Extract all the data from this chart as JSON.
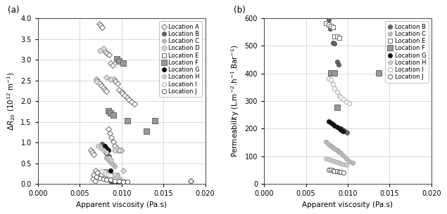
{
  "panel_a": {
    "xlabel": "Apparent viscosity (Pa.s)",
    "ylabel": "ΔR₂₀ (10¹² m⁻¹)",
    "xlim": [
      0.0,
      0.02
    ],
    "ylim": [
      0.0,
      4.0
    ],
    "xticks": [
      0.0,
      0.005,
      0.01,
      0.015,
      0.02
    ],
    "yticks": [
      0.0,
      0.5,
      1.0,
      1.5,
      2.0,
      2.5,
      3.0,
      3.5,
      4.0
    ],
    "locations": {
      "A": {
        "marker": "D",
        "color": "white",
        "edgecolor": "#666666",
        "ms": 4.5,
        "lw": 0.7,
        "x": [
          0.0073,
          0.0075,
          0.0077,
          0.0079,
          0.0081,
          0.0083,
          0.0085,
          0.0087,
          0.0089,
          0.0091,
          0.0093,
          0.0095,
          0.0097,
          0.01,
          0.007,
          0.0072,
          0.0074,
          0.0076,
          0.0078,
          0.008,
          0.0082,
          0.0084,
          0.0086,
          0.0088,
          0.009,
          0.0092,
          0.0094,
          0.0096,
          0.0099,
          0.0063,
          0.0065,
          0.0067,
          0.0069,
          0.0071,
          0.0076,
          0.0085,
          0.0066,
          0.0068,
          0.0183,
          0.0095,
          0.0101,
          0.0104,
          0.0107,
          0.0109,
          0.0112,
          0.0115
        ],
        "y": [
          3.87,
          3.83,
          3.78,
          3.22,
          3.18,
          3.15,
          3.12,
          2.92,
          2.87,
          2.52,
          2.47,
          2.42,
          2.27,
          2.22,
          2.52,
          2.47,
          2.43,
          2.38,
          2.33,
          2.28,
          2.23,
          1.32,
          1.22,
          1.12,
          1.02,
          0.92,
          0.87,
          0.82,
          0.82,
          0.82,
          0.77,
          0.72,
          0.32,
          0.27,
          0.22,
          0.17,
          0.12,
          0.07,
          0.07,
          0.07,
          2.18,
          2.13,
          2.08,
          2.03,
          1.98,
          1.93
        ]
      },
      "B": {
        "marker": "o",
        "color": "#666666",
        "edgecolor": "#444444",
        "ms": 4.5,
        "lw": 0.5,
        "x": [
          0.0077,
          0.0079,
          0.0081,
          0.0083,
          0.0085,
          0.0087,
          0.0089,
          0.0091,
          0.0093
        ],
        "y": [
          0.97,
          0.92,
          0.77,
          0.72,
          0.67,
          0.07,
          0.07,
          0.07,
          0.07
        ]
      },
      "C": {
        "marker": "o",
        "color": "#bbbbbb",
        "edgecolor": "#999999",
        "ms": 4.5,
        "lw": 0.5,
        "x": [
          0.0074,
          0.0077,
          0.008,
          0.0082,
          0.0084,
          0.0087,
          0.0089,
          0.0092,
          0.0095,
          0.0098,
          0.0102
        ],
        "y": [
          0.92,
          0.87,
          0.82,
          0.62,
          0.57,
          0.52,
          0.47,
          0.42,
          0.22,
          0.12,
          0.07
        ]
      },
      "D": {
        "marker": "D",
        "color": "#dddddd",
        "edgecolor": "#999999",
        "ms": 4.5,
        "lw": 0.7,
        "x": [
          0.007,
          0.0074,
          0.0078,
          0.0082,
          0.0087,
          0.0092,
          0.0097,
          0.0102,
          0.0084,
          0.008
        ],
        "y": [
          2.47,
          3.22,
          3.27,
          2.57,
          2.52,
          0.82,
          0.82,
          0.32,
          0.27,
          0.22
        ]
      },
      "E": {
        "marker": "s",
        "color": "white",
        "edgecolor": "#666666",
        "ms": 4.5,
        "lw": 0.7,
        "x": [
          0.008,
          0.0082,
          0.0084,
          0.0087,
          0.009,
          0.0092,
          0.0095
        ],
        "y": [
          0.3,
          0.27,
          0.24,
          0.22,
          0.2,
          0.17,
          0.12
        ]
      },
      "F": {
        "marker": "s",
        "color": "#999999",
        "edgecolor": "#666666",
        "ms": 5.5,
        "lw": 0.7,
        "x": [
          0.0084,
          0.0087,
          0.009,
          0.0094,
          0.0097,
          0.0102,
          0.0107,
          0.013,
          0.014
        ],
        "y": [
          1.77,
          1.72,
          1.67,
          3.02,
          2.97,
          2.92,
          1.52,
          1.27,
          1.52
        ]
      },
      "G": {
        "marker": "o",
        "color": "#111111",
        "edgecolor": "#111111",
        "ms": 4.5,
        "lw": 0.5,
        "x": [
          0.008,
          0.0082,
          0.0084,
          0.0087,
          0.009,
          0.0092,
          0.0094,
          0.0097
        ],
        "y": [
          0.92,
          0.87,
          0.82,
          0.32,
          0.12,
          0.1,
          0.07,
          0.05
        ]
      },
      "H": {
        "marker": "o",
        "color": "#cccccc",
        "edgecolor": "#aaaaaa",
        "ms": 4.5,
        "lw": 0.5,
        "x": [
          0.0072,
          0.0075,
          0.0078,
          0.0082,
          0.0085,
          0.0088,
          0.0092,
          0.0095,
          0.0098,
          0.0102
        ],
        "y": [
          0.92,
          0.87,
          0.82,
          0.77,
          0.62,
          0.57,
          0.22,
          0.17,
          0.12,
          0.07
        ]
      },
      "I": {
        "marker": "o",
        "color": "white",
        "edgecolor": "#aaaaaa",
        "ms": 4.5,
        "lw": 0.7,
        "x": [
          0.0077,
          0.008,
          0.0082,
          0.0084,
          0.0087,
          0.009,
          0.0092,
          0.0095,
          0.0098,
          0.0102
        ],
        "y": [
          0.3,
          0.27,
          0.24,
          0.22,
          0.2,
          0.12,
          0.1,
          0.08,
          0.07,
          0.05
        ]
      },
      "J": {
        "marker": "o",
        "color": "white",
        "edgecolor": "#555555",
        "ms": 4.5,
        "lw": 0.7,
        "x": [
          0.0067,
          0.007,
          0.0074,
          0.0078,
          0.0082,
          0.0087,
          0.0092,
          0.0097,
          0.0102,
          0.0107,
          0.0183
        ],
        "y": [
          0.22,
          0.17,
          0.14,
          0.12,
          0.1,
          0.1,
          0.07,
          0.07,
          0.05,
          0.05,
          0.07
        ]
      }
    }
  },
  "panel_b": {
    "xlabel": "Apparent viscosity (Pa.s)",
    "ylabel": "Permeability (L.m⁻².h⁻¹.Bar⁻¹)",
    "xlim": [
      0.0,
      0.02
    ],
    "ylim": [
      0,
      600
    ],
    "xticks": [
      0.0,
      0.005,
      0.01,
      0.015,
      0.02
    ],
    "yticks": [
      0,
      100,
      200,
      300,
      400,
      500,
      600
    ],
    "locations": {
      "B": {
        "marker": "o",
        "color": "#666666",
        "edgecolor": "#444444",
        "ms": 4.5,
        "lw": 0.5,
        "x": [
          0.0077,
          0.0079,
          0.0082,
          0.0084,
          0.0087,
          0.0089,
          0.0092,
          0.0094,
          0.0097,
          0.0099
        ],
        "y": [
          595,
          562,
          512,
          508,
          443,
          433,
          202,
          197,
          192,
          187
        ]
      },
      "C": {
        "marker": "o",
        "color": "#bbbbbb",
        "edgecolor": "#999999",
        "ms": 4.5,
        "lw": 0.5,
        "x": [
          0.0074,
          0.0077,
          0.008,
          0.0082,
          0.0084,
          0.0087,
          0.0089,
          0.0092,
          0.0095,
          0.0098,
          0.0102,
          0.0106
        ],
        "y": [
          152,
          142,
          137,
          132,
          127,
          122,
          117,
          112,
          102,
          92,
          82,
          77
        ]
      },
      "E": {
        "marker": "s",
        "color": "white",
        "edgecolor": "#666666",
        "ms": 4.5,
        "lw": 0.7,
        "x": [
          0.0074,
          0.0077,
          0.008,
          0.0082,
          0.0084,
          0.0087,
          0.009
        ],
        "y": [
          582,
          577,
          572,
          567,
          533,
          533,
          528
        ]
      },
      "F": {
        "marker": "s",
        "color": "#999999",
        "edgecolor": "#666666",
        "ms": 5.5,
        "lw": 0.7,
        "x": [
          0.008,
          0.0084,
          0.0087,
          0.0137
        ],
        "y": [
          402,
          402,
          278,
          402
        ]
      },
      "G": {
        "marker": "o",
        "color": "#111111",
        "edgecolor": "#111111",
        "ms": 4.5,
        "lw": 0.5,
        "x": [
          0.0077,
          0.008,
          0.0082,
          0.0084,
          0.0087,
          0.009,
          0.0092,
          0.0094
        ],
        "y": [
          227,
          222,
          217,
          212,
          207,
          202,
          197,
          192
        ]
      },
      "H": {
        "marker": "o",
        "color": "#cccccc",
        "edgecolor": "#aaaaaa",
        "ms": 4.5,
        "lw": 0.5,
        "x": [
          0.0074,
          0.0077,
          0.008,
          0.0082,
          0.0084,
          0.0087,
          0.009,
          0.0092,
          0.0095,
          0.0098
        ],
        "y": [
          92,
          90,
          87,
          84,
          82,
          80,
          77,
          74,
          72,
          70
        ]
      },
      "I": {
        "marker": "o",
        "color": "white",
        "edgecolor": "#aaaaaa",
        "ms": 4.5,
        "lw": 0.7,
        "x": [
          0.0077,
          0.008,
          0.0082,
          0.0084,
          0.0087,
          0.009,
          0.0092,
          0.0095,
          0.0098,
          0.0102
        ],
        "y": [
          382,
          377,
          362,
          347,
          332,
          317,
          312,
          307,
          297,
          292
        ]
      },
      "J": {
        "marker": "o",
        "color": "white",
        "edgecolor": "#555555",
        "ms": 4.5,
        "lw": 0.7,
        "x": [
          0.0077,
          0.008,
          0.0082,
          0.0084,
          0.0087,
          0.009,
          0.0092,
          0.0095
        ],
        "y": [
          52,
          50,
          48,
          46,
          45,
          44,
          43,
          42
        ]
      }
    }
  },
  "legend_a_order": [
    "A",
    "B",
    "C",
    "D",
    "E",
    "F",
    "G",
    "H",
    "I",
    "J"
  ],
  "legend_b_order": [
    "B",
    "C",
    "E",
    "F",
    "G",
    "H",
    "I",
    "J"
  ],
  "fontsize": 7.5
}
